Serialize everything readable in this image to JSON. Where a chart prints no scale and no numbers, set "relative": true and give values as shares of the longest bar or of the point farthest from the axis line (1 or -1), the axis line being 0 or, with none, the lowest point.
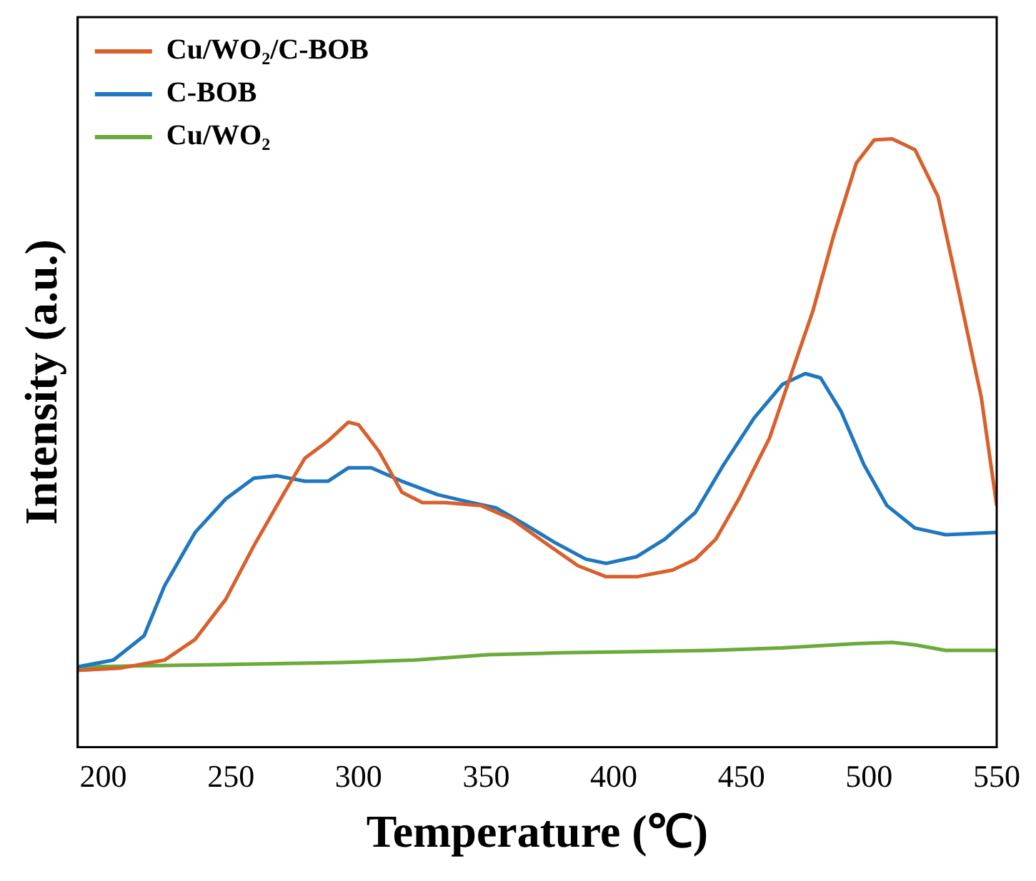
{
  "chart_data": {
    "type": "line",
    "xlabel": "Temperature (℃)",
    "ylabel": "Intensity (a.u.)",
    "relative": true,
    "xlim": [
      190,
      550
    ],
    "xticks": [
      200,
      250,
      300,
      350,
      400,
      450,
      500,
      550
    ],
    "tick_labels": "x",
    "legend": "top left",
    "grid": false,
    "marker": "none",
    "line_style": "solid",
    "series": [
      {
        "name": "Cu/WO₂/C-BOB",
        "color": "#d95f2b",
        "x": [
          190,
          207,
          224,
          236,
          248,
          259,
          271,
          279,
          288,
          296,
          300,
          308,
          317,
          325,
          334,
          348,
          360,
          371,
          386,
          397,
          409,
          423,
          432,
          440,
          449,
          461,
          469,
          478,
          486,
          495,
          502,
          509,
          518,
          527,
          535,
          544,
          550
        ],
        "values": [
          0.126,
          0.13,
          0.143,
          0.177,
          0.243,
          0.331,
          0.419,
          0.475,
          0.503,
          0.534,
          0.53,
          0.486,
          0.419,
          0.402,
          0.402,
          0.397,
          0.375,
          0.342,
          0.298,
          0.28,
          0.28,
          0.291,
          0.309,
          0.342,
          0.408,
          0.508,
          0.607,
          0.717,
          0.839,
          0.96,
          0.998,
          1,
          0.982,
          0.905,
          0.751,
          0.574,
          0.397
        ]
      },
      {
        "name": "C-BOB",
        "color": "#1f77c0",
        "x": [
          190,
          204,
          216,
          224,
          236,
          248,
          259,
          268,
          279,
          288,
          296,
          305,
          317,
          331,
          342,
          354,
          366,
          377,
          389,
          397,
          409,
          420,
          432,
          443,
          455,
          466,
          475,
          481,
          489,
          498,
          507,
          518,
          530,
          541,
          550
        ],
        "values": [
          0.132,
          0.143,
          0.183,
          0.265,
          0.353,
          0.408,
          0.442,
          0.446,
          0.437,
          0.437,
          0.459,
          0.459,
          0.437,
          0.415,
          0.404,
          0.393,
          0.364,
          0.336,
          0.309,
          0.302,
          0.313,
          0.342,
          0.386,
          0.464,
          0.541,
          0.596,
          0.614,
          0.607,
          0.552,
          0.464,
          0.397,
          0.36,
          0.349,
          0.351,
          0.353
        ]
      },
      {
        "name": "Cu/WO₂",
        "color": "#6aab3a",
        "x": [
          190,
          236,
          293,
          322,
          351,
          380,
          409,
          438,
          466,
          495,
          509,
          518,
          530,
          550
        ],
        "values": [
          0.132,
          0.135,
          0.139,
          0.143,
          0.152,
          0.155,
          0.157,
          0.159,
          0.163,
          0.17,
          0.172,
          0.168,
          0.159,
          0.159
        ]
      }
    ]
  }
}
